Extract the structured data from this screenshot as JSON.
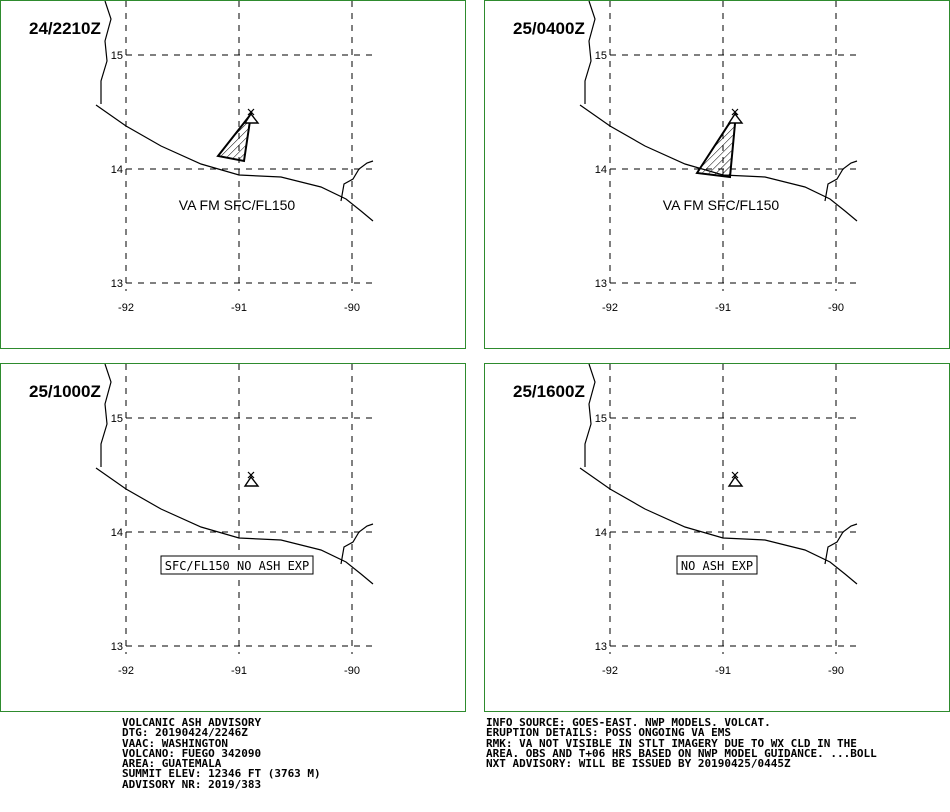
{
  "panels": [
    {
      "time": "24/2210Z",
      "label": "VA FM SFC/FL150",
      "boxed": false,
      "ash": "a"
    },
    {
      "time": "25/0400Z",
      "label": "VA FM SFC/FL150",
      "boxed": false,
      "ash": "b"
    },
    {
      "time": "25/1000Z",
      "label": "SFC/FL150 NO ASH EXP",
      "boxed": true,
      "ash": null
    },
    {
      "time": "25/1600Z",
      "label": "NO ASH EXP",
      "boxed": true,
      "ash": null
    }
  ],
  "axes": {
    "lat_labels": [
      "15",
      "14",
      "13"
    ],
    "lon_labels": [
      "-92",
      "-91",
      "-90"
    ]
  },
  "info_left": [
    "VOLCANIC ASH ADVISORY",
    "DTG: 20190424/2246Z",
    "VAAC: WASHINGTON",
    "VOLCANO: FUEGO 342090",
    "AREA: GUATEMALA",
    "SUMMIT ELEV: 12346 FT (3763 M)",
    "ADVISORY NR: 2019/383"
  ],
  "info_right": [
    "INFO SOURCE: GOES-EAST. NWP MODELS. VOLCAT.",
    "ERUPTION DETAILS: POSS ONGOING VA EMS",
    "RMK: VA NOT VISIBLE IN STLT IMAGERY DUE TO WX CLD IN THE",
    "AREA. OBS AND T+06 HRS BASED ON NWP MODEL GUIDANCE. ...BOLL",
    "NXT ADVISORY: WILL BE ISSUED BY 20190425/0445Z"
  ],
  "colors": {
    "border": "#2e8b2e",
    "line": "#000000"
  }
}
